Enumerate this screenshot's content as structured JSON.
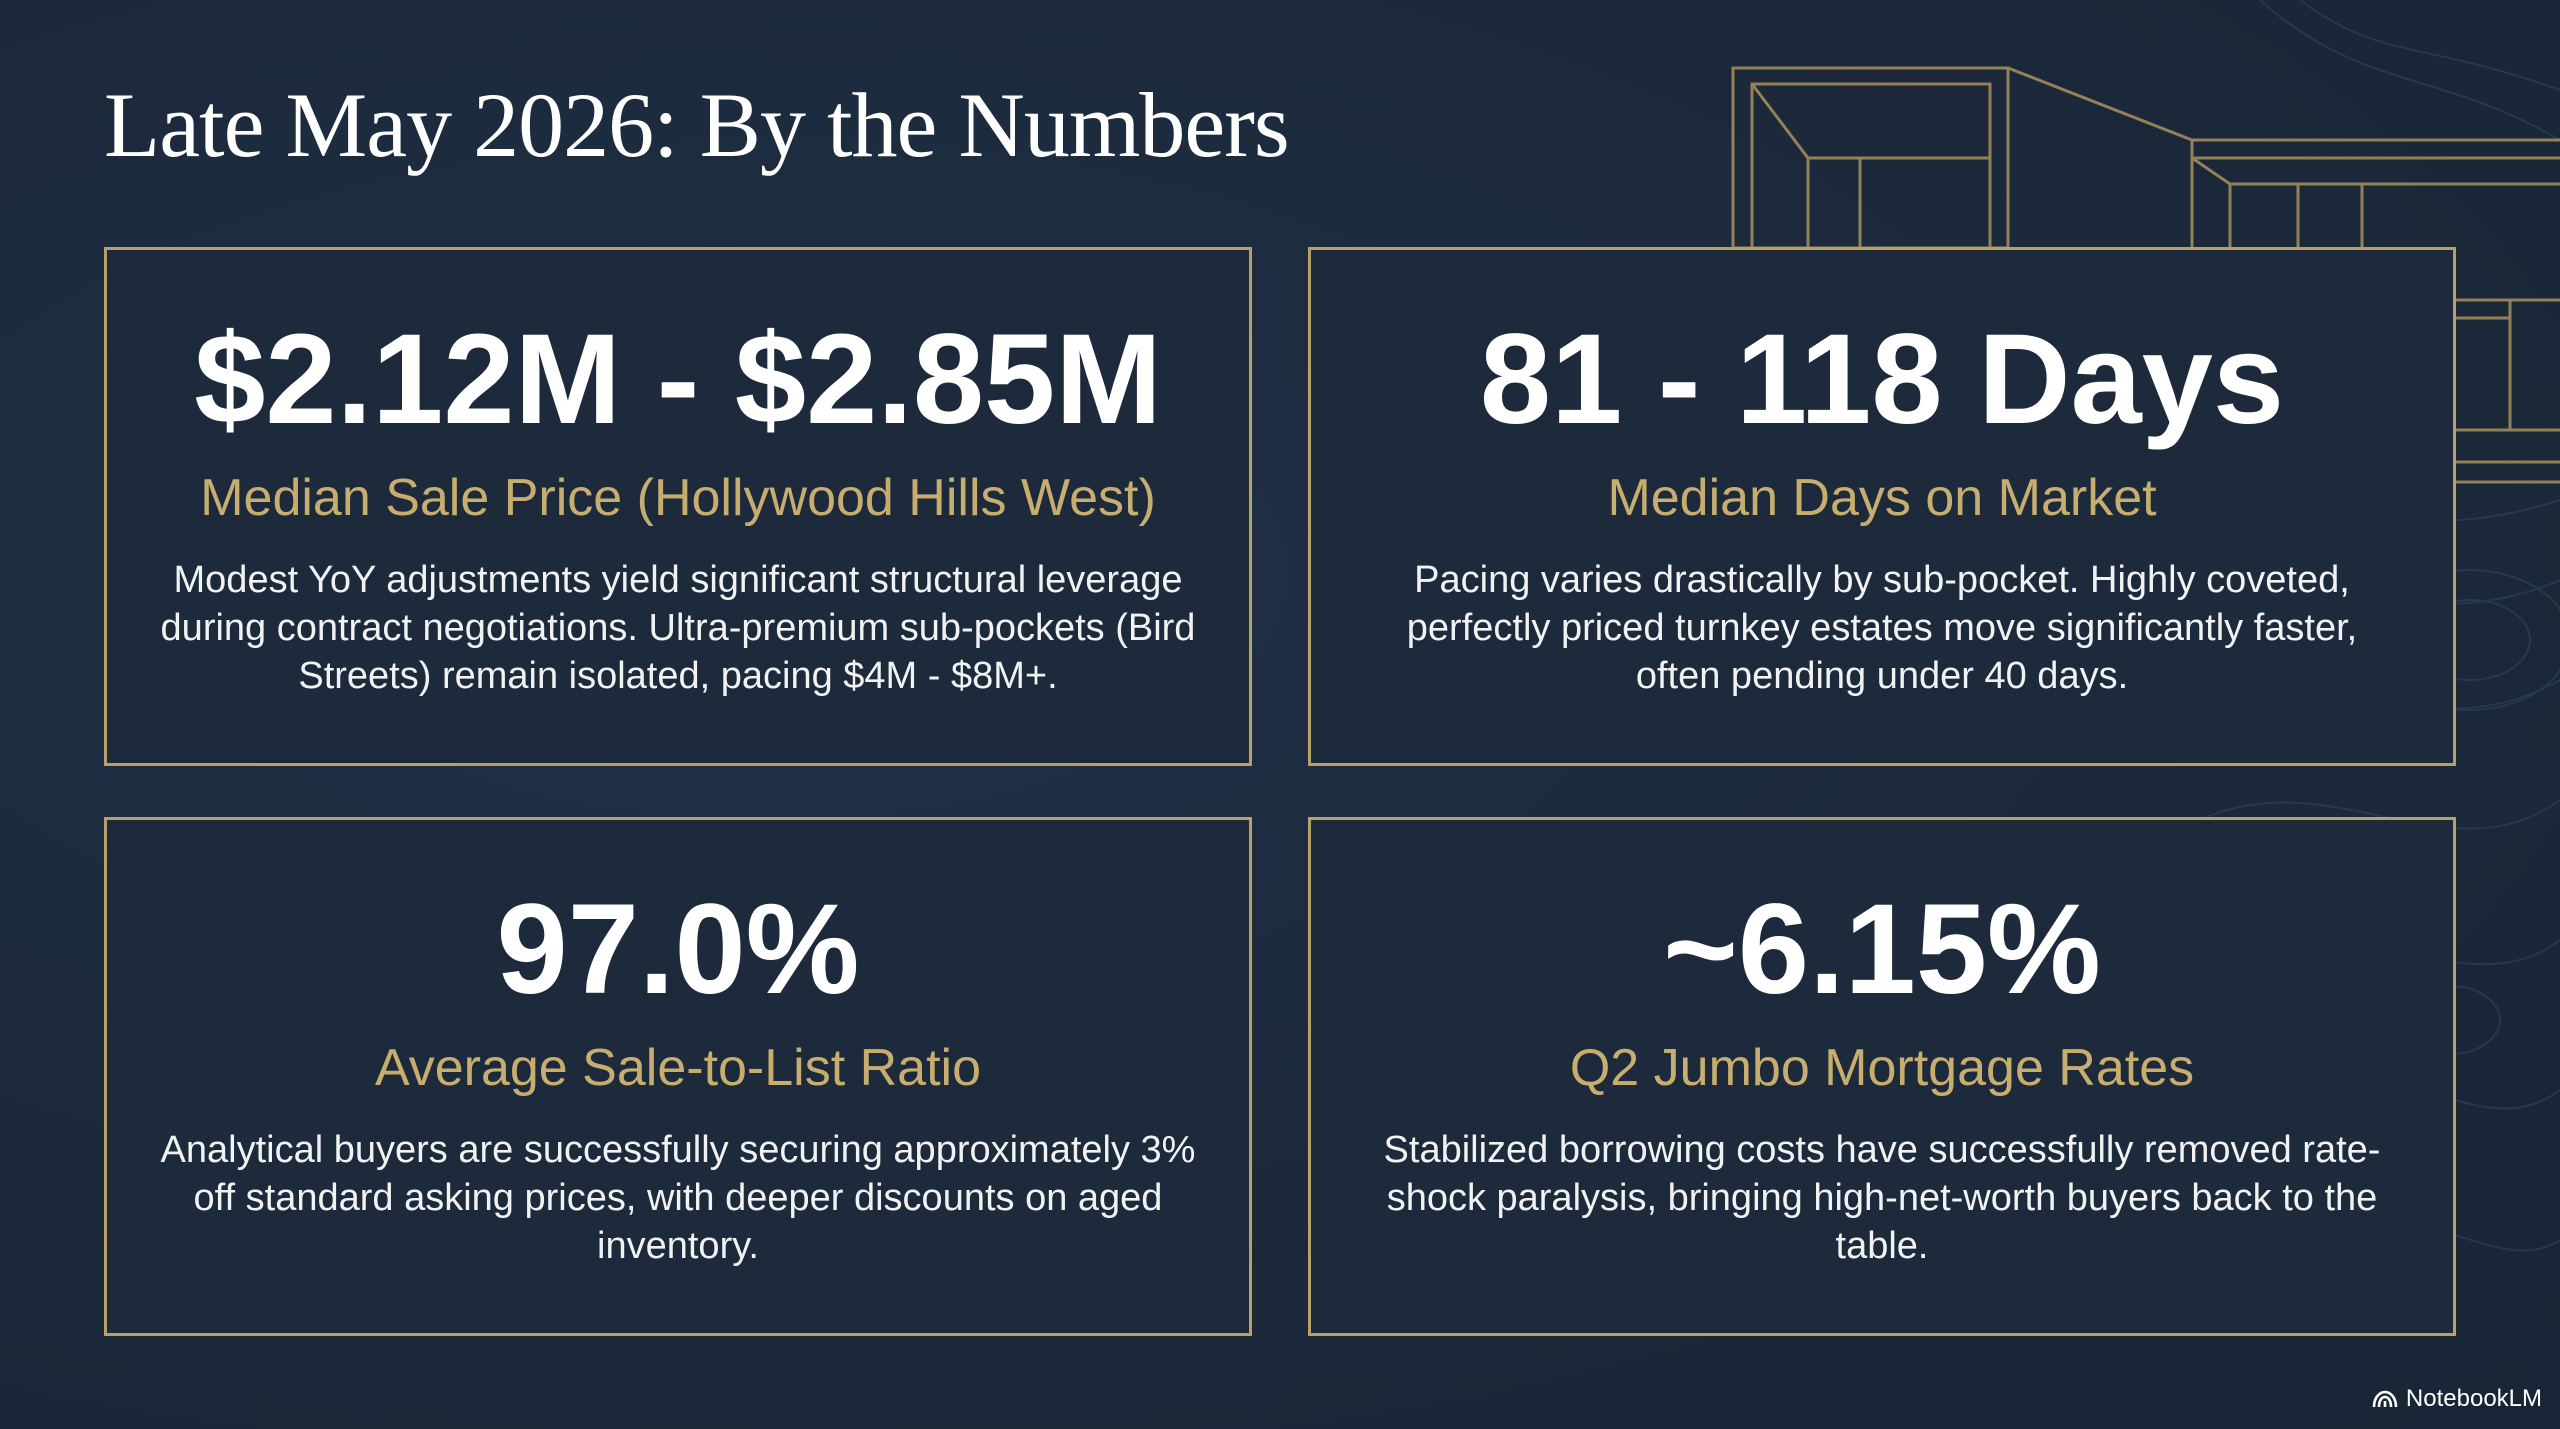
{
  "title": "Late May 2026: By the Numbers",
  "colors": {
    "background": "#1c293a",
    "accent_gold": "#c8ae6e",
    "border_gold": "#b8a068",
    "text_white": "#ffffff"
  },
  "cards": [
    {
      "value": "$2.12M - $2.85M",
      "label": "Median Sale Price (Hollywood Hills West)",
      "description": "Modest YoY adjustments yield significant structural leverage during contract negotiations. Ultra-premium sub-pockets (Bird Streets) remain isolated, pacing $4M - $8M+."
    },
    {
      "value": "81 - 118 Days",
      "label": "Median Days on Market",
      "description": "Pacing varies drastically by sub-pocket. Highly coveted, perfectly priced turnkey estates move significantly faster, often pending under 40 days."
    },
    {
      "value": "97.0%",
      "label": "Average Sale-to-List Ratio",
      "description": "Analytical buyers are successfully securing approximately 3% off standard asking prices, with deeper discounts on aged inventory."
    },
    {
      "value": "~6.15%",
      "label": "Q2 Jumbo Mortgage Rates",
      "description": "Stabilized borrowing costs have successfully removed rate-shock paralysis, bringing high-net-worth buyers back to the table."
    }
  ],
  "brand": {
    "icon": "notebooklm-logo-icon",
    "label": "NotebookLM"
  }
}
